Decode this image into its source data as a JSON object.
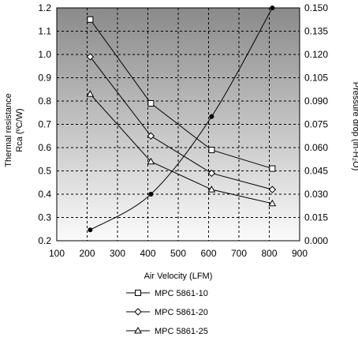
{
  "chart_data": {
    "type": "line",
    "xlabel": "Air Velocity (LFM)",
    "ylabel_left_line1": "Thermal resistance",
    "ylabel_left_line2": "Rca (ºC/W)",
    "ylabel_right": "Pressure drop  (in-H₂O)",
    "xlim": [
      100,
      900
    ],
    "ylim_left": [
      0.2,
      1.2
    ],
    "ylim_right": [
      0,
      0.15
    ],
    "x_ticks": [
      "100",
      "200",
      "300",
      "400",
      "500",
      "600",
      "700",
      "800",
      "900"
    ],
    "y_left_ticks": [
      "0.2",
      "0.3",
      "0.4",
      "0.5",
      "0.6",
      "0.7",
      "0.8",
      "0.9",
      "1.0",
      "1.1",
      "1.2"
    ],
    "y_right_ticks": [
      "0.000",
      "0.015",
      "0.030",
      "0.045",
      "0.060",
      "0.075",
      "0.090",
      "0.105",
      "0.120",
      "0.135",
      "0.150"
    ],
    "grid": true,
    "legend_position": "bottom-center",
    "series": [
      {
        "name": "MPC 5861-10",
        "axis": "left",
        "marker": "square",
        "x": [
          210,
          410,
          610,
          810
        ],
        "y": [
          1.15,
          0.79,
          0.59,
          0.51
        ]
      },
      {
        "name": "MPC 5861-20",
        "axis": "left",
        "marker": "diamond",
        "x": [
          210,
          410,
          610,
          810
        ],
        "y": [
          0.99,
          0.65,
          0.49,
          0.42
        ]
      },
      {
        "name": "MPC 5861-25",
        "axis": "left",
        "marker": "triangle",
        "x": [
          210,
          410,
          610,
          810
        ],
        "y": [
          0.83,
          0.54,
          0.42,
          0.36
        ]
      },
      {
        "name": "",
        "axis": "right",
        "marker": "dot",
        "x": [
          210,
          410,
          610,
          810
        ],
        "y": [
          0.007,
          0.03,
          0.08,
          0.15
        ]
      }
    ]
  }
}
